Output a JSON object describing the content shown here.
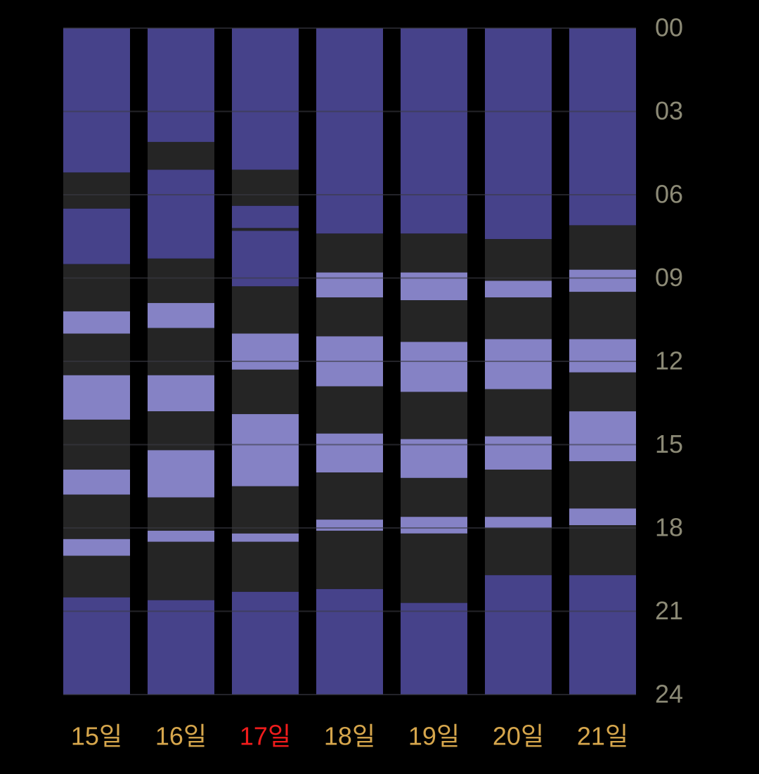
{
  "chart_data": {
    "type": "stacked-column",
    "ylim": [
      0,
      24
    ],
    "inverted": true,
    "grid": true,
    "grid_color": "#3a3a44",
    "yticks": [
      {
        "value": 0,
        "label": "00"
      },
      {
        "value": 3,
        "label": "03"
      },
      {
        "value": 6,
        "label": "06"
      },
      {
        "value": 9,
        "label": "09"
      },
      12,
      15,
      18,
      21,
      24
    ],
    "days": [
      {
        "label": "15일",
        "label_color": "#d6a64c",
        "segments": [
          {
            "color": "#46428a",
            "value": 5.2
          },
          {
            "color": "#252525",
            "value": 1.3
          },
          {
            "color": "#46428a",
            "value": 2.0
          },
          {
            "color": "#252525",
            "value": 1.7
          },
          {
            "color": "#8582c5",
            "value": 0.8
          },
          {
            "color": "#252525",
            "value": 1.5
          },
          {
            "color": "#8582c5",
            "value": 1.6
          },
          {
            "color": "#252525",
            "value": 1.8
          },
          {
            "color": "#8582c5",
            "value": 0.9
          },
          {
            "color": "#252525",
            "value": 1.6
          },
          {
            "color": "#8582c5",
            "value": 0.6
          },
          {
            "color": "#252525",
            "value": 1.5
          },
          {
            "color": "#46428a",
            "value": 3.5
          }
        ]
      },
      {
        "label": "16일",
        "label_color": "#d6a64c",
        "segments": [
          {
            "color": "#46428a",
            "value": 4.1
          },
          {
            "color": "#252525",
            "value": 1.0
          },
          {
            "color": "#46428a",
            "value": 3.2
          },
          {
            "color": "#252525",
            "value": 1.6
          },
          {
            "color": "#8582c5",
            "value": 0.9
          },
          {
            "color": "#252525",
            "value": 1.7
          },
          {
            "color": "#8582c5",
            "value": 1.3
          },
          {
            "color": "#252525",
            "value": 1.4
          },
          {
            "color": "#8582c5",
            "value": 1.7
          },
          {
            "color": "#252525",
            "value": 1.2
          },
          {
            "color": "#8582c5",
            "value": 0.4
          },
          {
            "color": "#252525",
            "value": 2.1
          },
          {
            "color": "#46428a",
            "value": 3.4
          }
        ]
      },
      {
        "label": "17일",
        "label_color": "#f01c1c",
        "segments": [
          {
            "color": "#46428a",
            "value": 5.1
          },
          {
            "color": "#252525",
            "value": 1.3
          },
          {
            "color": "#46428a",
            "value": 0.8
          },
          {
            "color": "#252525",
            "value": 0.1
          },
          {
            "color": "#46428a",
            "value": 2.0
          },
          {
            "color": "#252525",
            "value": 1.7
          },
          {
            "color": "#8582c5",
            "value": 1.3
          },
          {
            "color": "#252525",
            "value": 1.6
          },
          {
            "color": "#8582c5",
            "value": 2.6
          },
          {
            "color": "#252525",
            "value": 1.7
          },
          {
            "color": "#8582c5",
            "value": 0.3
          },
          {
            "color": "#252525",
            "value": 1.8
          },
          {
            "color": "#46428a",
            "value": 3.7
          }
        ]
      },
      {
        "label": "18일",
        "label_color": "#d6a64c",
        "segments": [
          {
            "color": "#46428a",
            "value": 7.4
          },
          {
            "color": "#252525",
            "value": 1.4
          },
          {
            "color": "#8582c5",
            "value": 0.9
          },
          {
            "color": "#252525",
            "value": 1.4
          },
          {
            "color": "#8582c5",
            "value": 1.8
          },
          {
            "color": "#252525",
            "value": 1.7
          },
          {
            "color": "#8582c5",
            "value": 1.4
          },
          {
            "color": "#252525",
            "value": 1.7
          },
          {
            "color": "#8582c5",
            "value": 0.4
          },
          {
            "color": "#252525",
            "value": 2.1
          },
          {
            "color": "#46428a",
            "value": 3.8
          }
        ]
      },
      {
        "label": "19일",
        "label_color": "#d6a64c",
        "segments": [
          {
            "color": "#46428a",
            "value": 7.4
          },
          {
            "color": "#252525",
            "value": 1.4
          },
          {
            "color": "#8582c5",
            "value": 1.0
          },
          {
            "color": "#252525",
            "value": 1.5
          },
          {
            "color": "#8582c5",
            "value": 1.8
          },
          {
            "color": "#252525",
            "value": 1.7
          },
          {
            "color": "#8582c5",
            "value": 1.4
          },
          {
            "color": "#252525",
            "value": 1.4
          },
          {
            "color": "#8582c5",
            "value": 0.6
          },
          {
            "color": "#252525",
            "value": 2.5
          },
          {
            "color": "#46428a",
            "value": 3.3
          }
        ]
      },
      {
        "label": "20일",
        "label_color": "#d6a64c",
        "segments": [
          {
            "color": "#46428a",
            "value": 7.6
          },
          {
            "color": "#252525",
            "value": 1.5
          },
          {
            "color": "#8582c5",
            "value": 0.6
          },
          {
            "color": "#252525",
            "value": 1.5
          },
          {
            "color": "#8582c5",
            "value": 1.8
          },
          {
            "color": "#252525",
            "value": 1.7
          },
          {
            "color": "#8582c5",
            "value": 1.2
          },
          {
            "color": "#252525",
            "value": 1.7
          },
          {
            "color": "#8582c5",
            "value": 0.4
          },
          {
            "color": "#252525",
            "value": 1.7
          },
          {
            "color": "#46428a",
            "value": 4.3
          }
        ]
      },
      {
        "label": "21일",
        "label_color": "#d6a64c",
        "segments": [
          {
            "color": "#46428a",
            "value": 7.1
          },
          {
            "color": "#252525",
            "value": 1.6
          },
          {
            "color": "#8582c5",
            "value": 0.8
          },
          {
            "color": "#252525",
            "value": 1.7
          },
          {
            "color": "#8582c5",
            "value": 1.2
          },
          {
            "color": "#252525",
            "value": 1.4
          },
          {
            "color": "#8582c5",
            "value": 1.8
          },
          {
            "color": "#252525",
            "value": 1.7
          },
          {
            "color": "#8582c5",
            "value": 0.6
          },
          {
            "color": "#252525",
            "value": 1.8
          },
          {
            "color": "#46428a",
            "value": 4.3
          }
        ]
      }
    ]
  }
}
